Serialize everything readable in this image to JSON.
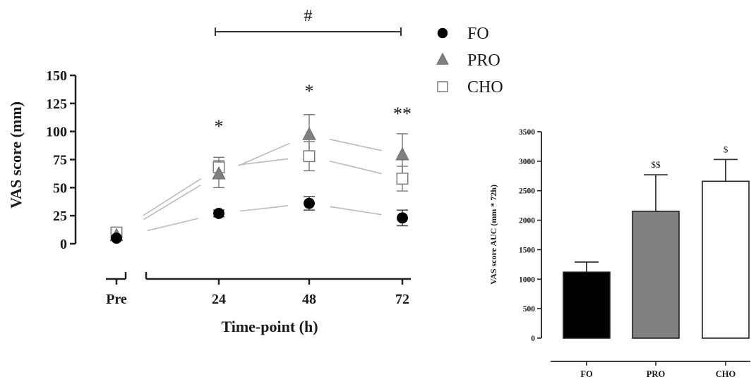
{
  "chart_data": [
    {
      "type": "line",
      "title": "",
      "xlabel": "Time-point (h)",
      "ylabel": "VAS score (mm)",
      "ylim": [
        0,
        150
      ],
      "yticks": [
        "0",
        "25",
        "50",
        "75",
        "100",
        "125",
        "150"
      ],
      "categories": [
        "Pre",
        "24",
        "48",
        "72"
      ],
      "legend_position": "top-right",
      "series": [
        {
          "name": "FO",
          "marker": "filled-circle",
          "color": "#000000",
          "values": [
            5,
            27,
            36,
            23
          ],
          "error": [
            0,
            3,
            6,
            7
          ]
        },
        {
          "name": "PRO",
          "marker": "filled-triangle",
          "color": "#808080",
          "values": [
            7,
            62,
            97,
            79
          ],
          "error": [
            0,
            12,
            18,
            19
          ]
        },
        {
          "name": "CHO",
          "marker": "open-square",
          "color": "#ffffff",
          "values": [
            10,
            68,
            78,
            58
          ],
          "error": [
            0,
            9,
            13,
            11
          ]
        }
      ],
      "annotations": {
        "bracket_label": "#",
        "bracket_from": "24",
        "bracket_to": "72",
        "point_marks": [
          {
            "category": "24",
            "label": "*"
          },
          {
            "category": "48",
            "label": "*"
          },
          {
            "category": "72",
            "label": "**"
          }
        ]
      }
    },
    {
      "type": "bar",
      "title": "",
      "xlabel": "",
      "ylabel": "VAS score AUC (mm * 72h)",
      "ylim": [
        0,
        3500
      ],
      "yticks": [
        "0",
        "500",
        "1000",
        "1500",
        "2000",
        "2500",
        "3000",
        "3500"
      ],
      "categories": [
        "FO",
        "PRO",
        "CHO"
      ],
      "values": [
        1120,
        2150,
        2660
      ],
      "error": [
        170,
        620,
        370
      ],
      "colors": [
        "#000000",
        "#808080",
        "#ffffff"
      ],
      "bar_labels": [
        "",
        "$$",
        "$"
      ]
    }
  ]
}
